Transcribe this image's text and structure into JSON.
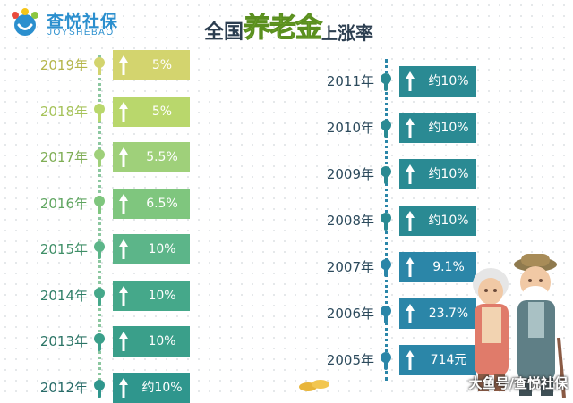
{
  "brand": {
    "name": "查悦社保",
    "sub": "JOYSHEBAO",
    "colors": {
      "blue": "#2b8fce",
      "red": "#e94b3c",
      "yellow": "#f5c518",
      "green": "#8cc63f"
    }
  },
  "title": {
    "part1": "全国",
    "part2": "养老金",
    "part3": "上",
    "part4": "涨率"
  },
  "left_rows": [
    {
      "year": "2019年",
      "value": "5%",
      "bar": "#d3d46e",
      "text": "#b5b64a"
    },
    {
      "year": "2018年",
      "value": "5%",
      "bar": "#b9d76c",
      "text": "#a6c35a"
    },
    {
      "year": "2017年",
      "value": "5.5%",
      "bar": "#9fd07a",
      "text": "#7fae55"
    },
    {
      "year": "2016年",
      "value": "6.5%",
      "bar": "#7fc67e",
      "text": "#5fa560"
    },
    {
      "year": "2015年",
      "value": "10%",
      "bar": "#5cb589",
      "text": "#3f8f67"
    },
    {
      "year": "2014年",
      "value": "10%",
      "bar": "#45a88a",
      "text": "#2f7f68"
    },
    {
      "year": "2013年",
      "value": "10%",
      "bar": "#3a9f8a",
      "text": "#2c7566"
    },
    {
      "year": "2012年",
      "value": "约10%",
      "bar": "#2f968d",
      "text": "#276b68"
    }
  ],
  "right_rows": [
    {
      "year": "2011年",
      "value": "约10%",
      "bar": "#2a8a93"
    },
    {
      "year": "2010年",
      "value": "约10%",
      "bar": "#2a8a93"
    },
    {
      "year": "2009年",
      "value": "约10%",
      "bar": "#2a8a93"
    },
    {
      "year": "2008年",
      "value": "约10%",
      "bar": "#2a8a93"
    },
    {
      "year": "2007年",
      "value": "9.1%",
      "bar": "#2b86a8"
    },
    {
      "year": "2006年",
      "value": "23.7%",
      "bar": "#2b86a8"
    },
    {
      "year": "2005年",
      "value": "714元",
      "bar": "#2b86a8"
    }
  ],
  "right_text_color": "#2c4a5c",
  "watermark": "大鱼号/查悦社保"
}
